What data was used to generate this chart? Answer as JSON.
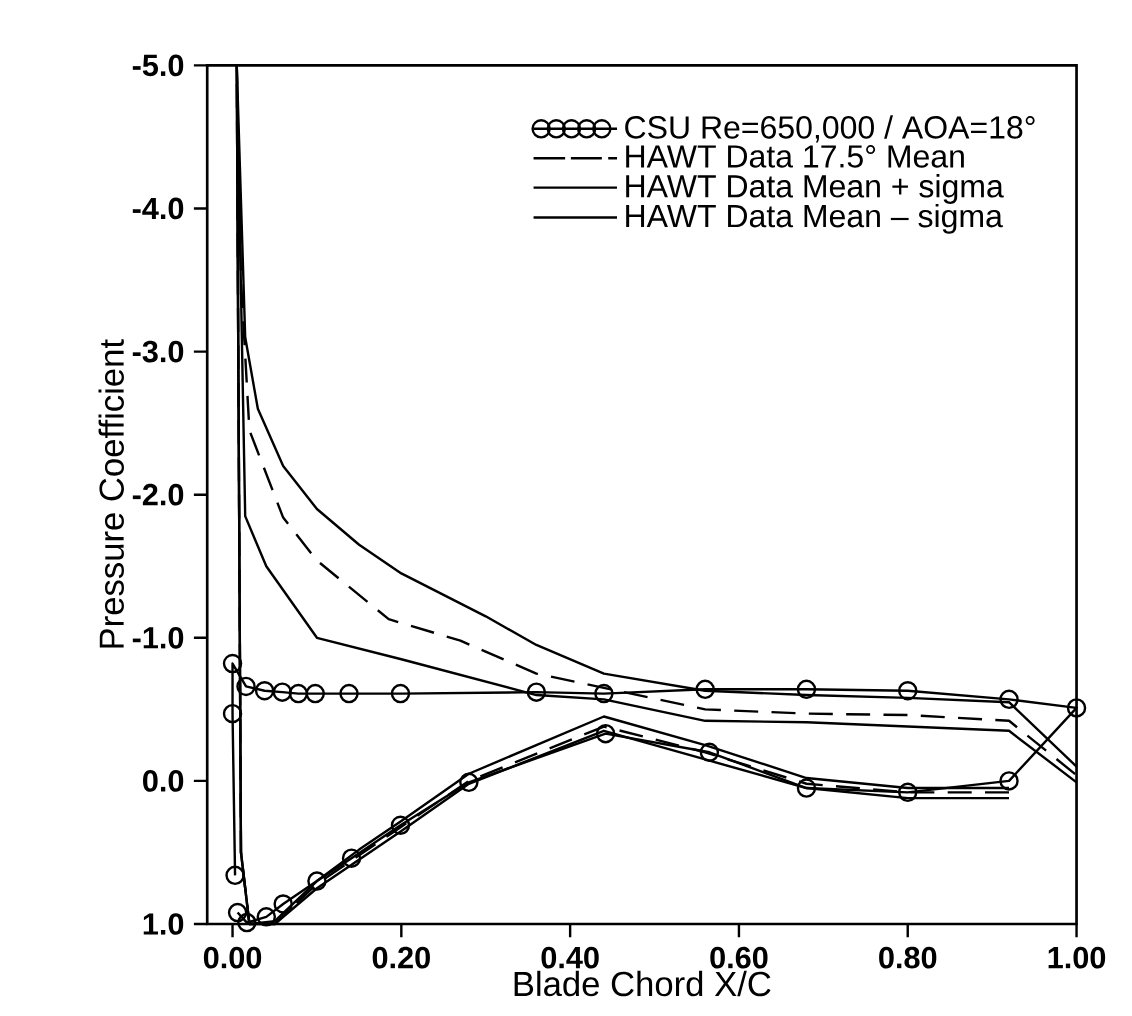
{
  "chart_data": {
    "type": "line",
    "xlabel": "Blade Chord X/C",
    "ylabel": "Pressure Coefficient",
    "xlim": [
      -0.03,
      1.0
    ],
    "ylim": [
      1.0,
      -5.0
    ],
    "xticks": [
      {
        "value": 0,
        "label": "0.00"
      },
      {
        "value": 0.2,
        "label": "0.20"
      },
      {
        "value": 0.4,
        "label": "0.40"
      },
      {
        "value": 0.6,
        "label": "0.60"
      },
      {
        "value": 0.8,
        "label": "0.80"
      },
      {
        "value": 1.0,
        "label": "1.00"
      }
    ],
    "yticks": [
      {
        "value": -5,
        "label": "-5.0"
      },
      {
        "value": -4,
        "label": "-4.0"
      },
      {
        "value": -3,
        "label": "-3.0"
      },
      {
        "value": -2,
        "label": "-2.0"
      },
      {
        "value": -1,
        "label": "-1.0"
      },
      {
        "value": 0,
        "label": "0.0"
      },
      {
        "value": 1,
        "label": "1.0"
      }
    ],
    "legend": "top right",
    "grid": false,
    "series": [
      {
        "name": "CSU  Re=650,000  /  AOA=18°",
        "color": "#000000",
        "marker": "circle",
        "line_style": "solid",
        "x": [
          0.003,
          0.0,
          0.0,
          0.016,
          0.038,
          0.059,
          0.078,
          0.098,
          0.138,
          0.199,
          0.36,
          0.44,
          0.56,
          0.68,
          0.8,
          0.92,
          1.0,
          0.92,
          0.8,
          0.68,
          0.565,
          0.442,
          0.28,
          0.199,
          0.141,
          0.1,
          0.06,
          0.04,
          0.017,
          0.006
        ],
        "values": [
          0.66,
          -0.47,
          -0.82,
          -0.66,
          -0.63,
          -0.62,
          -0.61,
          -0.61,
          -0.61,
          -0.61,
          -0.62,
          -0.61,
          -0.64,
          -0.64,
          -0.63,
          -0.57,
          -0.51,
          0.0,
          0.08,
          0.05,
          -0.2,
          -0.33,
          0.01,
          0.31,
          0.54,
          0.7,
          0.86,
          0.95,
          0.99,
          0.92
        ]
      },
      {
        "name": "HAWT  Data  17.5°  Mean",
        "color": "#000000",
        "marker": "none",
        "line_style": "dashed",
        "x": [
          0.92,
          0.8,
          0.68,
          0.56,
          0.44,
          0.28,
          0.2,
          0.15,
          0.1,
          0.05,
          0.02,
          0.01,
          0.005,
          0.01,
          0.02,
          0.06,
          0.1,
          0.185,
          0.27,
          0.36,
          0.44,
          0.56,
          0.68,
          0.8,
          0.92,
          1.0
        ],
        "values": [
          0.08,
          0.08,
          0.02,
          -0.2,
          -0.38,
          0.0,
          0.32,
          0.52,
          0.72,
          1.0,
          1.0,
          0.5,
          -5.0,
          -3.5,
          -2.45,
          -1.84,
          -1.54,
          -1.13,
          -0.98,
          -0.75,
          -0.65,
          -0.5,
          -0.47,
          -0.46,
          -0.42,
          -0.04
        ]
      },
      {
        "name": "HAWT  Data  Mean  +  sigma",
        "color": "#000000",
        "marker": "none",
        "line_style": "solid",
        "x": [
          0.92,
          0.8,
          0.68,
          0.56,
          0.44,
          0.28,
          0.2,
          0.15,
          0.1,
          0.05,
          0.02,
          0.01,
          0.005,
          0.015,
          0.03,
          0.06,
          0.1,
          0.15,
          0.2,
          0.3,
          0.36,
          0.44,
          0.56,
          0.68,
          0.8,
          0.92,
          1.0
        ],
        "values": [
          0.05,
          0.05,
          -0.02,
          -0.25,
          -0.45,
          -0.05,
          0.28,
          0.48,
          0.7,
          0.98,
          1.0,
          0.5,
          -5.0,
          -3.1,
          -2.6,
          -2.2,
          -1.9,
          -1.65,
          -1.45,
          -1.15,
          -0.95,
          -0.75,
          -0.63,
          -0.6,
          -0.58,
          -0.55,
          -0.1
        ]
      },
      {
        "name": "HAWT  Data  Mean  –  sigma",
        "color": "#000000",
        "marker": "none",
        "line_style": "solid",
        "x": [
          0.92,
          0.8,
          0.68,
          0.56,
          0.44,
          0.28,
          0.2,
          0.1,
          0.05,
          0.02,
          0.01,
          0.005,
          0.015,
          0.04,
          0.1,
          0.2,
          0.36,
          0.44,
          0.56,
          0.68,
          0.8,
          0.92,
          1.0
        ],
        "values": [
          0.12,
          0.12,
          0.05,
          -0.15,
          -0.35,
          0.02,
          0.35,
          0.75,
          1.0,
          1.0,
          0.5,
          -5.0,
          -1.85,
          -1.5,
          -1.0,
          -0.85,
          -0.6,
          -0.57,
          -0.42,
          -0.41,
          -0.38,
          -0.35,
          0.01
        ]
      }
    ]
  }
}
